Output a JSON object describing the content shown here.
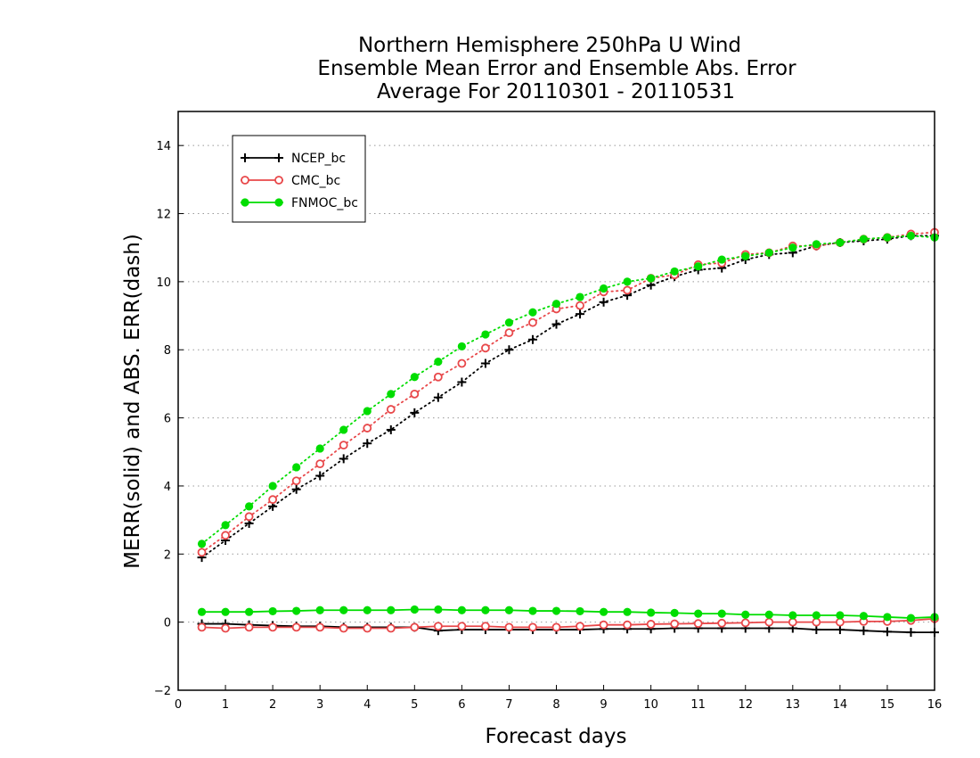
{
  "chart_data": {
    "type": "line",
    "title": [
      "Northern Hemisphere 250hPa U Wind",
      "Ensemble Mean Error and Ensemble Abs. Error",
      "Average For 20110301 - 20110531"
    ],
    "xlabel": "Forecast days",
    "ylabel": "MERR(solid) and ABS. ERR(dash)",
    "xlim": [
      0,
      16
    ],
    "ylim": [
      -2,
      15
    ],
    "xticks": [
      0,
      1,
      2,
      3,
      4,
      5,
      6,
      7,
      8,
      9,
      10,
      11,
      12,
      13,
      14,
      15,
      16
    ],
    "yticks": [
      -2,
      0,
      2,
      4,
      6,
      8,
      10,
      12,
      14
    ],
    "grid": "horizontal-dotted",
    "legend_position": "top-left",
    "x": [
      0.5,
      1,
      1.5,
      2,
      2.5,
      3,
      3.5,
      4,
      4.5,
      5,
      5.5,
      6,
      6.5,
      7,
      7.5,
      8,
      8.5,
      9,
      9.5,
      10,
      10.5,
      11,
      11.5,
      12,
      12.5,
      13,
      13.5,
      14,
      14.5,
      15,
      15.5,
      16
    ],
    "series": [
      {
        "name": "NCEP_bc",
        "color": "#000000",
        "marker": "plus",
        "mean_error": [
          -0.05,
          -0.05,
          -0.08,
          -0.1,
          -0.12,
          -0.12,
          -0.15,
          -0.15,
          -0.15,
          -0.15,
          -0.25,
          -0.22,
          -0.22,
          -0.22,
          -0.22,
          -0.22,
          -0.22,
          -0.2,
          -0.2,
          -0.2,
          -0.18,
          -0.18,
          -0.18,
          -0.18,
          -0.18,
          -0.18,
          -0.22,
          -0.22,
          -0.25,
          -0.28,
          -0.3,
          -0.3
        ],
        "abs_error": [
          1.9,
          2.4,
          2.9,
          3.4,
          3.9,
          4.3,
          4.8,
          5.25,
          5.65,
          6.15,
          6.6,
          7.05,
          7.6,
          8.0,
          8.3,
          8.75,
          9.05,
          9.4,
          9.6,
          9.9,
          10.15,
          10.35,
          10.4,
          10.65,
          10.8,
          10.85,
          11.05,
          11.15,
          11.2,
          11.25,
          11.35,
          11.35
        ]
      },
      {
        "name": "CMC_bc",
        "color": "#e8484a",
        "marker": "open-circle",
        "mean_error": [
          -0.15,
          -0.18,
          -0.15,
          -0.15,
          -0.15,
          -0.15,
          -0.18,
          -0.18,
          -0.18,
          -0.15,
          -0.12,
          -0.12,
          -0.12,
          -0.15,
          -0.15,
          -0.15,
          -0.12,
          -0.08,
          -0.08,
          -0.06,
          -0.05,
          -0.04,
          -0.03,
          -0.02,
          0.0,
          0.0,
          0.0,
          0.0,
          0.02,
          0.02,
          0.05,
          0.1
        ],
        "abs_error": [
          2.05,
          2.55,
          3.1,
          3.6,
          4.15,
          4.65,
          5.2,
          5.7,
          6.25,
          6.7,
          7.2,
          7.6,
          8.05,
          8.5,
          8.8,
          9.2,
          9.3,
          9.7,
          9.75,
          10.1,
          10.2,
          10.5,
          10.55,
          10.8,
          10.85,
          11.05,
          11.05,
          11.15,
          11.25,
          11.3,
          11.4,
          11.45
        ]
      },
      {
        "name": "FNMOC_bc",
        "color": "#00dd00",
        "marker": "filled-circle",
        "mean_error": [
          0.3,
          0.3,
          0.3,
          0.32,
          0.33,
          0.35,
          0.35,
          0.35,
          0.35,
          0.37,
          0.37,
          0.35,
          0.35,
          0.35,
          0.33,
          0.33,
          0.32,
          0.3,
          0.3,
          0.28,
          0.27,
          0.25,
          0.25,
          0.22,
          0.22,
          0.2,
          0.2,
          0.2,
          0.18,
          0.15,
          0.12,
          0.15
        ],
        "abs_error": [
          2.3,
          2.85,
          3.4,
          4.0,
          4.55,
          5.1,
          5.65,
          6.2,
          6.7,
          7.2,
          7.65,
          8.1,
          8.45,
          8.8,
          9.1,
          9.35,
          9.55,
          9.8,
          10.0,
          10.1,
          10.3,
          10.45,
          10.65,
          10.75,
          10.85,
          11.0,
          11.1,
          11.15,
          11.25,
          11.3,
          11.35,
          11.3
        ]
      }
    ]
  }
}
